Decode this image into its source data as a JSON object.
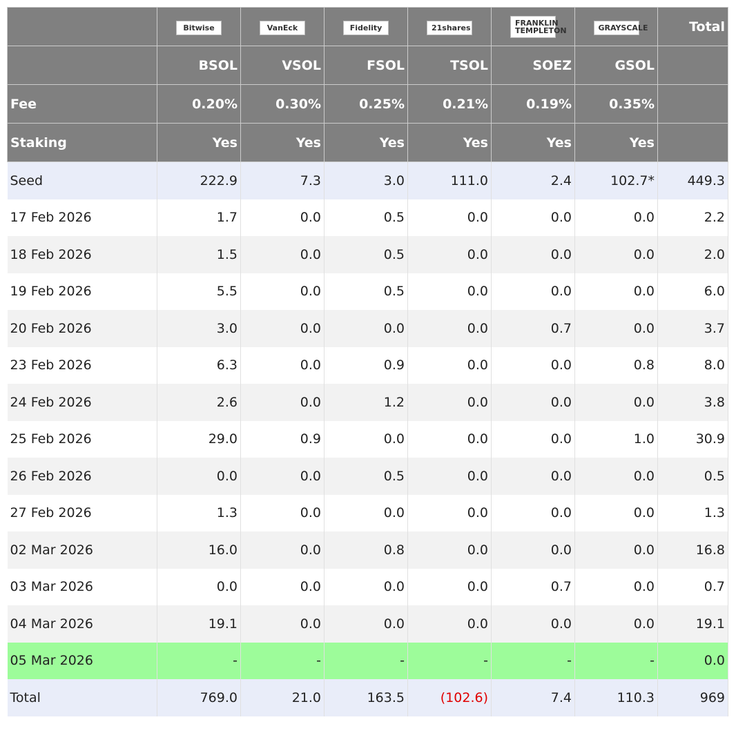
{
  "table": {
    "header": {
      "logos": [
        "Bitwise",
        "VanEck",
        "Fidelity",
        "21shares",
        "FRANKLIN TEMPLETON",
        "GRAYSCALE"
      ],
      "total": "Total",
      "tickers": [
        "BSOL",
        "VSOL",
        "FSOL",
        "TSOL",
        "SOEZ",
        "GSOL"
      ],
      "fee": {
        "label": "Fee",
        "values": [
          "0.20%",
          "0.30%",
          "0.25%",
          "0.21%",
          "0.19%",
          "0.35%"
        ]
      },
      "staking": {
        "label": "Staking",
        "values": [
          "Yes",
          "Yes",
          "Yes",
          "Yes",
          "Yes",
          "Yes"
        ]
      }
    },
    "rows": [
      [
        "Seed",
        "222.9",
        "7.3",
        "3.0",
        "111.0",
        "2.4",
        "102.7*",
        "449.3"
      ],
      [
        "17 Feb 2026",
        "1.7",
        "0.0",
        "0.5",
        "0.0",
        "0.0",
        "0.0",
        "2.2"
      ],
      [
        "18 Feb 2026",
        "1.5",
        "0.0",
        "0.5",
        "0.0",
        "0.0",
        "0.0",
        "2.0"
      ],
      [
        "19 Feb 2026",
        "5.5",
        "0.0",
        "0.5",
        "0.0",
        "0.0",
        "0.0",
        "6.0"
      ],
      [
        "20 Feb 2026",
        "3.0",
        "0.0",
        "0.0",
        "0.0",
        "0.7",
        "0.0",
        "3.7"
      ],
      [
        "23 Feb 2026",
        "6.3",
        "0.0",
        "0.9",
        "0.0",
        "0.0",
        "0.8",
        "8.0"
      ],
      [
        "24 Feb 2026",
        "2.6",
        "0.0",
        "1.2",
        "0.0",
        "0.0",
        "0.0",
        "3.8"
      ],
      [
        "25 Feb 2026",
        "29.0",
        "0.9",
        "0.0",
        "0.0",
        "0.0",
        "1.0",
        "30.9"
      ],
      [
        "26 Feb 2026",
        "0.0",
        "0.0",
        "0.5",
        "0.0",
        "0.0",
        "0.0",
        "0.5"
      ],
      [
        "27 Feb 2026",
        "1.3",
        "0.0",
        "0.0",
        "0.0",
        "0.0",
        "0.0",
        "1.3"
      ],
      [
        "02 Mar 2026",
        "16.0",
        "0.0",
        "0.8",
        "0.0",
        "0.0",
        "0.0",
        "16.8"
      ],
      [
        "03 Mar 2026",
        "0.0",
        "0.0",
        "0.0",
        "0.0",
        "0.7",
        "0.0",
        "0.7"
      ],
      [
        "04 Mar 2026",
        "19.1",
        "0.0",
        "0.0",
        "0.0",
        "0.0",
        "0.0",
        "19.1"
      ],
      [
        "05 Mar 2026",
        "-",
        "-",
        "-",
        "-",
        "-",
        "-",
        "0.0"
      ],
      [
        "Total",
        "769.0",
        "21.0",
        "163.5",
        "(102.6)",
        "7.4",
        "110.3",
        "969"
      ]
    ]
  }
}
